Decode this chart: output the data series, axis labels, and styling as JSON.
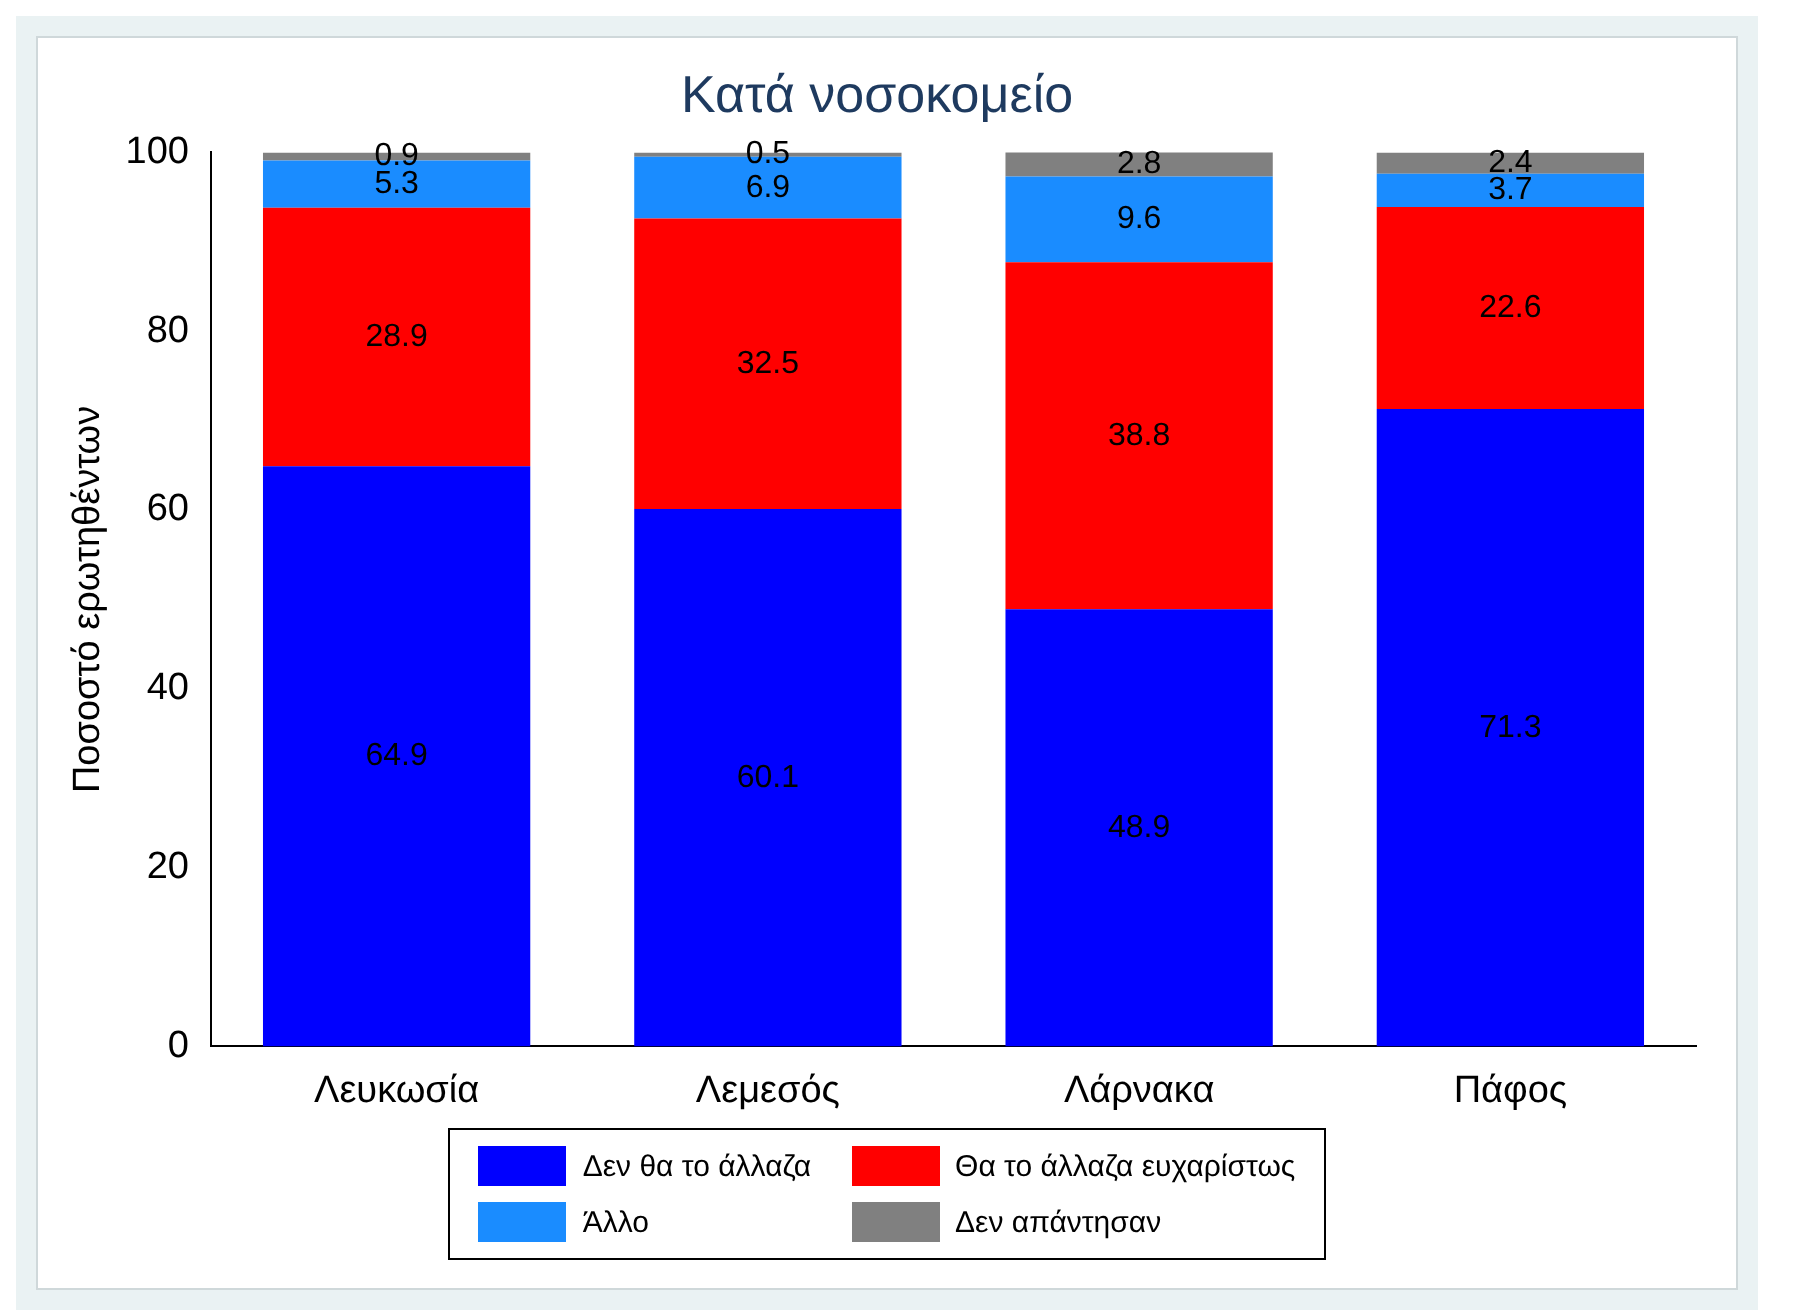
{
  "chart_data": {
    "type": "bar",
    "title": "Κατά νοσοκομείο",
    "ylabel": "Ποσοστό ερωτηθέντων",
    "categories": [
      "Λευκωσία",
      "Λεμεσός",
      "Λάρνακα",
      "Πάφος"
    ],
    "stacked": true,
    "data_labels": true,
    "legend": "bottom",
    "grid": false,
    "ylim": [
      0,
      100
    ],
    "yticks": [
      0,
      20,
      40,
      60,
      80,
      100
    ],
    "series": [
      {
        "name": "Δεν θα το άλλαζα",
        "color": "#0000ff",
        "values": [
          64.9,
          60.1,
          48.9,
          71.3
        ]
      },
      {
        "name": "Θα το άλλαζα ευχαρίστως",
        "color": "#ff0000",
        "values": [
          28.9,
          32.5,
          38.8,
          22.6
        ]
      },
      {
        "name": "Άλλο",
        "color": "#1a8cff",
        "values": [
          5.3,
          6.9,
          9.6,
          3.7
        ]
      },
      {
        "name": "Δεν απάντησαν",
        "color": "#808080",
        "values": [
          0.9,
          0.5,
          2.8,
          2.4
        ]
      }
    ]
  }
}
